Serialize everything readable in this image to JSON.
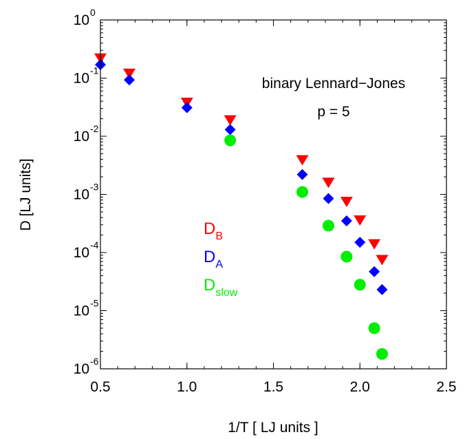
{
  "chart_data": {
    "type": "scatter",
    "title": "",
    "xlabel": "1/T [ LJ units ]",
    "ylabel": "D [LJ units]",
    "xlim": [
      0.5,
      2.5
    ],
    "ylim": [
      1e-06,
      1
    ],
    "yscale": "log",
    "grid": false,
    "x_ticks": [
      {
        "value": 0.5,
        "label": "0.5"
      },
      {
        "value": 1.0,
        "label": "1.0"
      },
      {
        "value": 1.5,
        "label": "1.5"
      },
      {
        "value": 2.0,
        "label": "2.0"
      },
      {
        "value": 2.5,
        "label": "2.5"
      }
    ],
    "y_ticks": [
      {
        "value": 1,
        "base": "10",
        "exp": "0"
      },
      {
        "value": 0.1,
        "base": "10",
        "exp": "-1"
      },
      {
        "value": 0.01,
        "base": "10",
        "exp": "-2"
      },
      {
        "value": 0.001,
        "base": "10",
        "exp": "-3"
      },
      {
        "value": 0.0001,
        "base": "10",
        "exp": "-4"
      },
      {
        "value": 1e-05,
        "base": "10",
        "exp": "-5"
      },
      {
        "value": 1e-06,
        "base": "10",
        "exp": "-6"
      }
    ],
    "annotations": [
      "binary Lennard−Jones",
      "p = 5"
    ],
    "legend_position": "center",
    "series": [
      {
        "name": "D",
        "sub": "B",
        "color": "#ff0000",
        "marker": "triangle-down",
        "x": [
          0.5,
          0.667,
          1.0,
          1.25,
          1.667,
          1.818,
          1.923,
          2.0,
          2.083,
          2.128
        ],
        "y": [
          0.22,
          0.12,
          0.038,
          0.019,
          0.0039,
          0.0016,
          0.00075,
          0.00036,
          0.00014,
          7.5e-05
        ]
      },
      {
        "name": "D",
        "sub": "A",
        "color": "#0000ff",
        "marker": "diamond",
        "x": [
          0.5,
          0.667,
          1.0,
          1.25,
          1.667,
          1.818,
          1.923,
          2.0,
          2.083,
          2.128
        ],
        "y": [
          0.17,
          0.093,
          0.031,
          0.013,
          0.0022,
          0.00085,
          0.00035,
          0.00015,
          4.7e-05,
          2.3e-05
        ]
      },
      {
        "name": "D",
        "sub": "slow",
        "color": "#00ee00",
        "marker": "circle",
        "x": [
          1.25,
          1.667,
          1.818,
          1.923,
          2.0,
          2.083,
          2.128
        ],
        "y": [
          0.0085,
          0.0011,
          0.00029,
          8.5e-05,
          2.8e-05,
          5e-06,
          1.8e-06
        ]
      }
    ]
  }
}
